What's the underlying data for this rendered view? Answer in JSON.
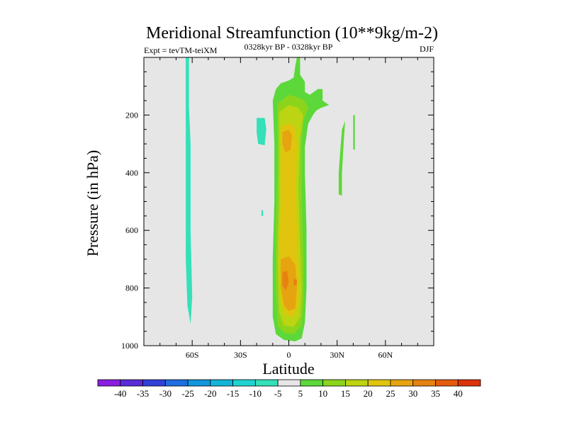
{
  "chart_data": {
    "type": "contour",
    "title": "Meridional Streamfunction (10**9kg/m-2)",
    "experiment_label": "Expt = tevTM-teiXM",
    "time_label": "0328kyr BP - 0328kyr BP",
    "season_label": "DJF",
    "xlabel": "Latitude",
    "ylabel": "Pressure (in hPa)",
    "xlim": [
      -90,
      90
    ],
    "ylim": [
      1000,
      0
    ],
    "x_ticks": [
      {
        "value": -60,
        "label": "60S"
      },
      {
        "value": -30,
        "label": "30S"
      },
      {
        "value": 0,
        "label": "0"
      },
      {
        "value": 30,
        "label": "30N"
      },
      {
        "value": 60,
        "label": "60N"
      }
    ],
    "y_ticks": [
      {
        "value": 200,
        "label": "200"
      },
      {
        "value": 400,
        "label": "400"
      },
      {
        "value": 600,
        "label": "600"
      },
      {
        "value": 800,
        "label": "800"
      },
      {
        "value": 1000,
        "label": "1000"
      }
    ],
    "colorbar": {
      "labels": [
        "-40",
        "-35",
        "-30",
        "-25",
        "-20",
        "-15",
        "-10",
        "-5",
        "5",
        "10",
        "15",
        "20",
        "25",
        "30",
        "35",
        "40"
      ],
      "colors": [
        "#8a1ee0",
        "#5b2ad8",
        "#3040d8",
        "#1f6ee0",
        "#1296dc",
        "#14b4d8",
        "#1ed2d0",
        "#34e0b8",
        "#e6e6e6",
        "#5cd83a",
        "#8cd41c",
        "#bcd412",
        "#e0c40e",
        "#e6a410",
        "#e68210",
        "#e65a0e",
        "#dc320c"
      ]
    },
    "background_color": "#e6e6e6",
    "contours": [
      {
        "level": "-10 to -5",
        "color": "#34e0b8",
        "polygon": [
          [
            -64,
            0
          ],
          [
            -62,
            0
          ],
          [
            -62,
            170
          ],
          [
            -61,
            300
          ],
          [
            -61,
            600
          ],
          [
            -60,
            830
          ],
          [
            -61,
            925
          ],
          [
            -63,
            860
          ],
          [
            -64,
            700
          ],
          [
            -64,
            400
          ],
          [
            -64,
            150
          ]
        ]
      },
      {
        "level": "-10 to -5",
        "color": "#34e0b8",
        "polygon": [
          [
            -20,
            210
          ],
          [
            -15,
            210
          ],
          [
            -14,
            250
          ],
          [
            -15,
            305
          ],
          [
            -19,
            300
          ],
          [
            -20,
            260
          ]
        ]
      },
      {
        "level": "-10 to -5",
        "color": "#34e0b8",
        "polygon": [
          [
            -17,
            530
          ],
          [
            -16,
            530
          ],
          [
            -16,
            550
          ],
          [
            -17,
            550
          ]
        ]
      },
      {
        "level": "5 to 10",
        "color": "#5cd83a",
        "polygon": [
          [
            5,
            0
          ],
          [
            7,
            0
          ],
          [
            7,
            60
          ],
          [
            10,
            85
          ],
          [
            10,
            120
          ],
          [
            13,
            130
          ],
          [
            18,
            110
          ],
          [
            21,
            110
          ],
          [
            21,
            150
          ],
          [
            25,
            165
          ],
          [
            20,
            175
          ],
          [
            17,
            185
          ],
          [
            15,
            200
          ],
          [
            12,
            230
          ],
          [
            10,
            310
          ],
          [
            10,
            400
          ],
          [
            11,
            600
          ],
          [
            11,
            800
          ],
          [
            10,
            920
          ],
          [
            8,
            975
          ],
          [
            4,
            985
          ],
          [
            -3,
            980
          ],
          [
            -8,
            960
          ],
          [
            -10,
            900
          ],
          [
            -10,
            700
          ],
          [
            -9,
            500
          ],
          [
            -9,
            300
          ],
          [
            -10,
            150
          ],
          [
            -8,
            110
          ],
          [
            -5,
            90
          ],
          [
            0,
            80
          ],
          [
            3,
            70
          ],
          [
            4,
            30
          ]
        ]
      },
      {
        "level": "5 to 10",
        "color": "#5cd83a",
        "polygon": [
          [
            33,
            250
          ],
          [
            35,
            220
          ],
          [
            34,
            300
          ],
          [
            33,
            400
          ],
          [
            33,
            480
          ],
          [
            31,
            475
          ],
          [
            31,
            400
          ],
          [
            32,
            320
          ]
        ]
      },
      {
        "level": "5 to 10",
        "color": "#5cd83a",
        "polygon": [
          [
            40,
            200
          ],
          [
            41,
            200
          ],
          [
            41,
            320
          ],
          [
            40,
            320
          ]
        ]
      },
      {
        "level": "10 to 15",
        "color": "#8cd41c",
        "polygon": [
          [
            -7,
            160
          ],
          [
            0,
            130
          ],
          [
            6,
            140
          ],
          [
            10,
            150
          ],
          [
            12,
            175
          ],
          [
            9,
            220
          ],
          [
            8,
            300
          ],
          [
            8,
            500
          ],
          [
            9,
            700
          ],
          [
            9,
            850
          ],
          [
            8,
            930
          ],
          [
            3,
            960
          ],
          [
            -3,
            955
          ],
          [
            -7,
            930
          ],
          [
            -8,
            800
          ],
          [
            -8,
            600
          ],
          [
            -7,
            400
          ],
          [
            -7,
            250
          ]
        ]
      },
      {
        "level": "15 to 20",
        "color": "#bcd412",
        "polygon": [
          [
            -6,
            190
          ],
          [
            0,
            165
          ],
          [
            6,
            175
          ],
          [
            9,
            200
          ],
          [
            7,
            280
          ],
          [
            6,
            450
          ],
          [
            7,
            650
          ],
          [
            8,
            800
          ],
          [
            7,
            900
          ],
          [
            3,
            935
          ],
          [
            -3,
            930
          ],
          [
            -6,
            880
          ],
          [
            -7,
            700
          ],
          [
            -6,
            500
          ],
          [
            -6,
            300
          ]
        ]
      },
      {
        "level": "20 to 25",
        "color": "#e0c40e",
        "polygon": [
          [
            -5,
            240
          ],
          [
            0,
            230
          ],
          [
            4,
            240
          ],
          [
            5,
            300
          ],
          [
            4,
            450
          ],
          [
            5,
            600
          ],
          [
            6,
            750
          ],
          [
            6,
            850
          ],
          [
            3,
            900
          ],
          [
            -2,
            895
          ],
          [
            -5,
            840
          ],
          [
            -6,
            700
          ],
          [
            -5,
            500
          ],
          [
            -5,
            350
          ]
        ]
      },
      {
        "level": "25 to 30",
        "color": "#e6a410",
        "polygon": [
          [
            -4,
            260
          ],
          [
            0,
            250
          ],
          [
            2,
            270
          ],
          [
            1,
            320
          ],
          [
            -2,
            330
          ],
          [
            -4,
            300
          ]
        ]
      },
      {
        "level": "25 to 30",
        "color": "#e6a410",
        "polygon": [
          [
            -5,
            700
          ],
          [
            0,
            690
          ],
          [
            4,
            720
          ],
          [
            5,
            800
          ],
          [
            4,
            870
          ],
          [
            0,
            880
          ],
          [
            -3,
            860
          ],
          [
            -5,
            800
          ]
        ]
      },
      {
        "level": "30 to 35",
        "color": "#e68210",
        "polygon": [
          [
            -4,
            745
          ],
          [
            -1,
            740
          ],
          [
            0,
            780
          ],
          [
            -2,
            810
          ],
          [
            -4,
            790
          ]
        ]
      },
      {
        "level": "30 to 35",
        "color": "#e68210",
        "polygon": [
          [
            3,
            770
          ],
          [
            5,
            770
          ],
          [
            5,
            790
          ],
          [
            3,
            790
          ]
        ]
      }
    ]
  }
}
